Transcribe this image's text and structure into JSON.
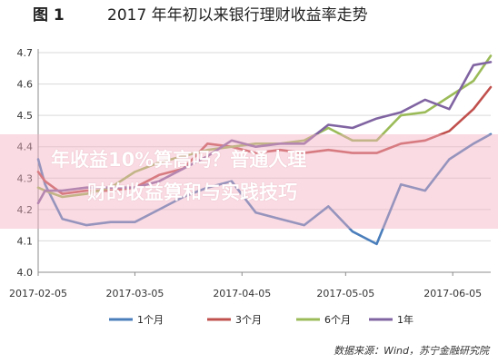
{
  "title": {
    "figure_no": "图 1",
    "text": "2017 年年初以来银行理财收益率走势"
  },
  "overlay": {
    "line1": "年收益10%算高吗？普通人理",
    "line2": "财的收益算和与实践技巧"
  },
  "source": "数据来源：Wind，苏宁金融研究院",
  "colors": {
    "1m": "#4a7ebb",
    "3m": "#c0504d",
    "6m": "#9bbb59",
    "1y": "#8064a2",
    "axis": "#8c8c8c",
    "grid": "#d9d9d9"
  },
  "chart_data": {
    "type": "line",
    "title": "2017 年年初以来银行理财收益率走势",
    "xlabel": "",
    "ylabel": "",
    "ylim": [
      4.0,
      4.7
    ],
    "yticks": [
      "4.0",
      "4.1",
      "4.2",
      "4.3",
      "4.4",
      "4.5",
      "4.6",
      "4.7"
    ],
    "xticks": [
      "2017-02-05",
      "2017-03-05",
      "2017-04-05",
      "2017-05-05",
      "2017-06-05"
    ],
    "x": [
      "2017-02-05",
      "2017-02-07",
      "2017-02-12",
      "2017-02-19",
      "2017-02-26",
      "2017-03-05",
      "2017-03-12",
      "2017-03-19",
      "2017-03-26",
      "2017-04-02",
      "2017-04-09",
      "2017-04-16",
      "2017-04-23",
      "2017-04-30",
      "2017-05-07",
      "2017-05-14",
      "2017-05-21",
      "2017-05-28",
      "2017-06-04",
      "2017-06-11",
      "2017-06-16"
    ],
    "series": [
      {
        "name": "1个月",
        "key": "1m",
        "values": [
          4.36,
          4.28,
          4.17,
          4.15,
          4.16,
          4.16,
          4.2,
          4.24,
          4.27,
          4.29,
          4.19,
          4.17,
          4.15,
          4.21,
          4.13,
          4.09,
          4.28,
          4.26,
          4.36,
          4.41,
          4.44
        ]
      },
      {
        "name": "3个月",
        "key": "3m",
        "values": [
          4.32,
          4.29,
          4.25,
          4.26,
          4.26,
          4.27,
          4.31,
          4.33,
          4.41,
          4.4,
          4.38,
          4.39,
          4.38,
          4.39,
          4.38,
          4.38,
          4.41,
          4.42,
          4.45,
          4.52,
          4.59
        ]
      },
      {
        "name": "6个月",
        "key": "6m",
        "values": [
          4.27,
          4.26,
          4.24,
          4.25,
          4.27,
          4.32,
          4.35,
          4.37,
          4.39,
          4.4,
          4.41,
          4.41,
          4.42,
          4.46,
          4.42,
          4.42,
          4.5,
          4.51,
          4.56,
          4.61,
          4.69
        ]
      },
      {
        "name": "1年",
        "key": "1y",
        "values": [
          4.22,
          4.26,
          4.26,
          4.27,
          4.27,
          4.27,
          4.29,
          4.33,
          4.37,
          4.42,
          4.4,
          4.41,
          4.41,
          4.47,
          4.46,
          4.49,
          4.51,
          4.55,
          4.52,
          4.66,
          4.67
        ]
      }
    ],
    "grid": "horizontal",
    "legend": "bottom"
  }
}
